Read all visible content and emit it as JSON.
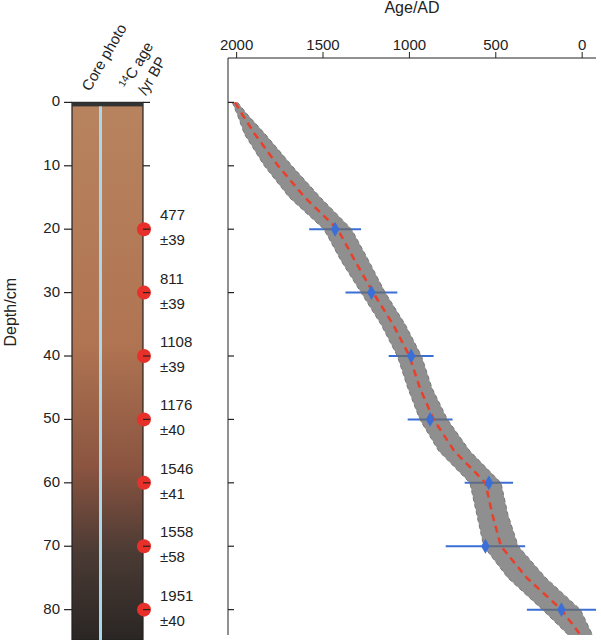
{
  "chart_data": {
    "type": "age_depth",
    "x_label": "Age/AD",
    "y_label": "Depth/cm",
    "xlim": [
      2050,
      -80
    ],
    "xticks": [
      2000,
      1500,
      1000,
      500,
      0
    ],
    "ylim": [
      -7,
      84
    ],
    "yticks": [
      0,
      10,
      20,
      30,
      40,
      50,
      60,
      70,
      80
    ],
    "grid": false,
    "age_model": {
      "depth": [
        0,
        2,
        5,
        10,
        15,
        20,
        25,
        30,
        35,
        40,
        45,
        50,
        55,
        60,
        65,
        70,
        75,
        80,
        84
      ],
      "median": [
        2010,
        1965,
        1895,
        1760,
        1605,
        1415,
        1315,
        1210,
        1095,
        1000,
        940,
        860,
        740,
        560,
        520,
        470,
        320,
        120,
        10
      ],
      "older": [
        2025,
        1995,
        1955,
        1840,
        1695,
        1495,
        1395,
        1280,
        1165,
        1070,
        1010,
        940,
        830,
        650,
        610,
        570,
        430,
        230,
        80
      ],
      "younger": [
        1995,
        1935,
        1835,
        1680,
        1515,
        1335,
        1235,
        1140,
        1025,
        930,
        870,
        780,
        650,
        470,
        430,
        370,
        210,
        10,
        -60
      ],
      "color": "#e8402a",
      "line_style": "dashed",
      "envelope_color": "#6a6a6a"
    },
    "calibrated_dates": {
      "depth": [
        20,
        30,
        40,
        50,
        60,
        70,
        80
      ],
      "age": [
        1430,
        1220,
        990,
        880,
        540,
        560,
        120
      ],
      "age_error": [
        150,
        150,
        130,
        130,
        140,
        230,
        200
      ],
      "color": "#3b6fd6",
      "marker": "diamond"
    },
    "core": {
      "label": "Core photo",
      "c14_label": "14C age /yr BP",
      "marker_color": "#e8302a",
      "samples": [
        {
          "depth": 20,
          "age": 477,
          "error": 39,
          "error_label": "±39"
        },
        {
          "depth": 30,
          "age": 811,
          "error": 39,
          "error_label": "±39"
        },
        {
          "depth": 40,
          "age": 1108,
          "error": 39,
          "error_label": "±39"
        },
        {
          "depth": 50,
          "age": 1176,
          "error": 40,
          "error_label": "±40"
        },
        {
          "depth": 60,
          "age": 1546,
          "error": 41,
          "error_label": "±41"
        },
        {
          "depth": 70,
          "age": 1558,
          "error": 58,
          "error_label": "±58"
        },
        {
          "depth": 80,
          "age": 1951,
          "error": 40,
          "error_label": "±40"
        }
      ]
    }
  }
}
